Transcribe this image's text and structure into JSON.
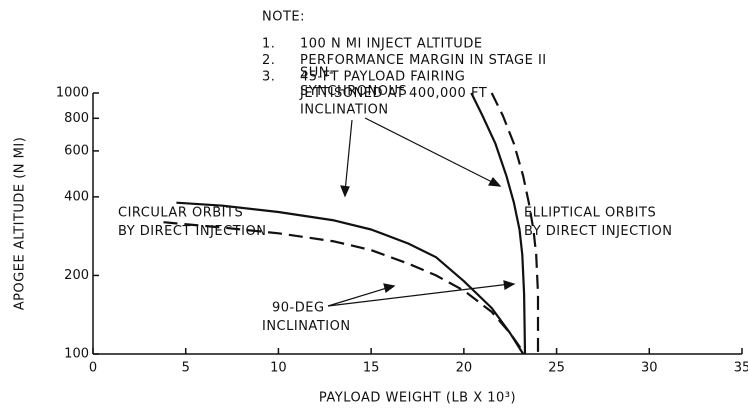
{
  "chart_data": {
    "type": "line",
    "note_title": "NOTE:",
    "notes": [
      {
        "number": "1.",
        "lines": [
          "100 N MI INJECT ALTITUDE"
        ]
      },
      {
        "number": "2.",
        "lines": [
          "PERFORMANCE MARGIN IN STAGE II"
        ]
      },
      {
        "number": "3.",
        "lines": [
          "45-FT PAYLOAD FAIRING",
          "JETTISONED AT 400,000 FT"
        ]
      }
    ],
    "annotations": [
      [
        "CIRCULAR ORBITS",
        "BY DIRECT INJECTION"
      ],
      [
        "SUN-",
        "SYNCHRONOUS",
        "INCLINATION"
      ],
      [
        "ELLIPTICAL ORBITS",
        "BY DIRECT INJECTION"
      ],
      [
        "90-DEG",
        "INCLINATION"
      ]
    ],
    "x_label": "PAYLOAD WEIGHT (LB X 10³)",
    "y_label": "APOGEE ALTITUDE (N MI)",
    "xlim": [
      0,
      35
    ],
    "xticks": [
      0,
      5,
      10,
      15,
      20,
      25,
      30,
      35
    ],
    "ylim": [
      100,
      1000
    ],
    "yticks": [
      100,
      200,
      400,
      600,
      800,
      1000
    ],
    "log_y": true,
    "series": [
      {
        "color": "#111111",
        "dash": "solid",
        "x": [
          4.5,
          7,
          10,
          13,
          15,
          17,
          18.5,
          20,
          21.5,
          22.5,
          23.2
        ],
        "values": [
          380,
          370,
          350,
          325,
          300,
          265,
          235,
          190,
          150,
          120,
          100
        ]
      },
      {
        "color": "#111111",
        "dash": "dashed",
        "x": [
          3.8,
          7,
          10,
          13,
          15,
          17,
          18.5,
          20,
          21.5,
          22.5,
          23.2
        ],
        "values": [
          320,
          305,
          290,
          270,
          250,
          222,
          200,
          175,
          145,
          120,
          102
        ]
      },
      {
        "color": "#111111",
        "dash": "solid",
        "x": [
          20.4,
          21,
          21.7,
          22.3,
          22.7,
          23,
          23.15,
          23.25,
          23.3
        ],
        "values": [
          1000,
          820,
          640,
          480,
          380,
          300,
          240,
          170,
          100
        ]
      },
      {
        "color": "#111111",
        "dash": "dashed",
        "x": [
          21.5,
          22.1,
          22.7,
          23.2,
          23.5,
          23.75,
          23.9,
          24,
          24
        ],
        "values": [
          1000,
          820,
          640,
          480,
          380,
          300,
          240,
          170,
          100
        ]
      }
    ]
  }
}
